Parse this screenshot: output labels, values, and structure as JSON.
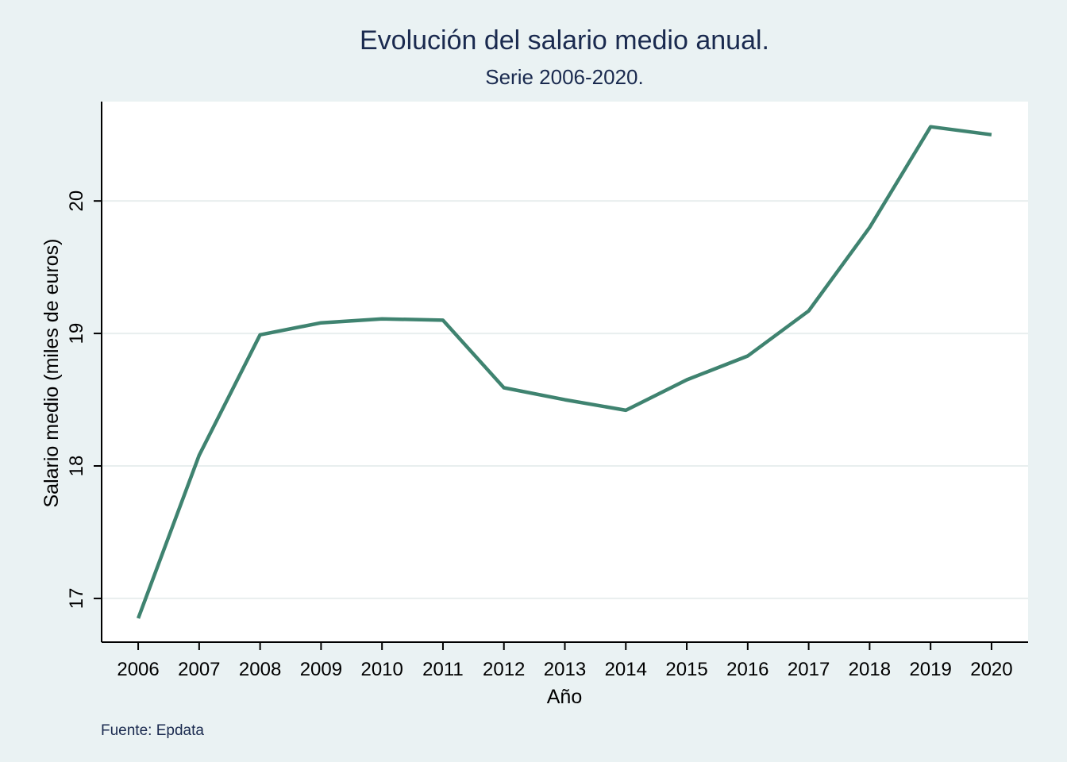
{
  "chart_data": {
    "type": "line",
    "title": "Evolución del salario medio anual.",
    "subtitle": "Serie 2006-2020.",
    "xlabel": "Año",
    "ylabel": "Salario medio (miles de euros)",
    "source": "Fuente: Epdata",
    "x": [
      2006,
      2007,
      2008,
      2009,
      2010,
      2011,
      2012,
      2013,
      2014,
      2015,
      2016,
      2017,
      2018,
      2019,
      2020
    ],
    "x_tick_labels": [
      "2006",
      "2007",
      "2008",
      "2009",
      "2010",
      "2011",
      "2012",
      "2013",
      "2014",
      "2015",
      "2016",
      "2017",
      "2018",
      "2019",
      "2020"
    ],
    "series": [
      {
        "values": [
          16.85,
          18.08,
          18.99,
          19.08,
          19.11,
          19.1,
          18.59,
          18.5,
          18.42,
          18.65,
          18.83,
          19.17,
          19.8,
          20.56,
          20.5
        ]
      }
    ],
    "y_ticks": [
      17,
      18,
      19,
      20
    ],
    "y_tick_labels": [
      "17",
      "18",
      "19",
      "20"
    ],
    "ylim": [
      16.67,
      20.75
    ],
    "xlim": [
      2005.4,
      2020.6
    ],
    "grid": true,
    "colors": {
      "line": "#3f8370",
      "background": "#eaf2f3",
      "plot_background": "#ffffff",
      "grid": "#e8eeee",
      "title": "#1a2a4f"
    }
  }
}
